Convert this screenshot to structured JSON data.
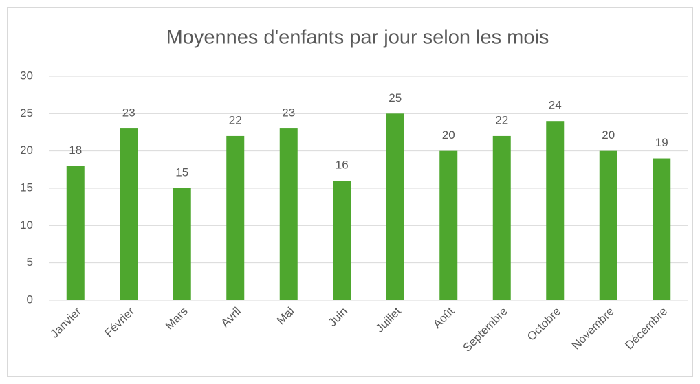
{
  "chart_data": {
    "type": "bar",
    "title": "Moyennes d'enfants par jour selon les mois",
    "categories": [
      "Janvier",
      "Février",
      "Mars",
      "Avril",
      "Mai",
      "Juin",
      "Juillet",
      "Août",
      "Septembre",
      "Octobre",
      "Novembre",
      "Décembre"
    ],
    "values": [
      18,
      23,
      15,
      22,
      23,
      16,
      25,
      20,
      22,
      24,
      20,
      19
    ],
    "color": "#4ea72e",
    "ylim": [
      0,
      30
    ],
    "yticks": [
      0,
      5,
      10,
      15,
      20,
      25,
      30
    ],
    "grid": true
  }
}
